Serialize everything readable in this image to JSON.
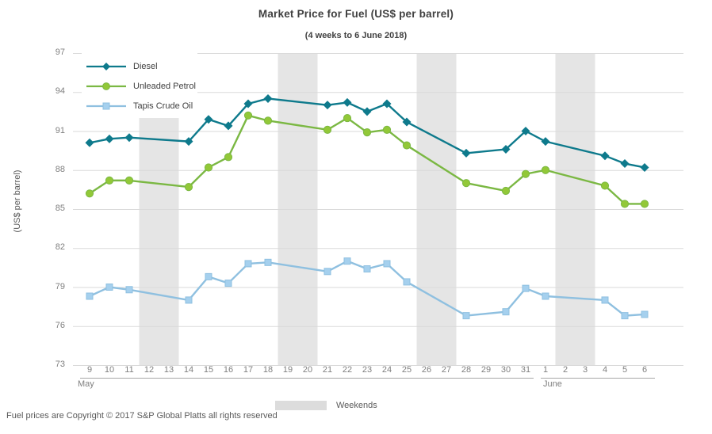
{
  "footer": "Fuel prices are Copyright © 2017 S&P Global Platts all rights reserved",
  "colors": {
    "title_text": "#404040",
    "tick_text": "#7F7F7F",
    "muted_text": "#595959",
    "gridline": "#DADADA",
    "weekend_band": "#E5E5E5",
    "weekend_swatch": "#DCDCDC",
    "diesel": "#0E7A8C",
    "unleaded_petrol": "#7BB843",
    "tapis_crude_oil": "#8FC0E0"
  },
  "chart_data": {
    "type": "line",
    "title": "Market Price for Fuel (US$ per barrel)",
    "subtitle": "(4 weeks to 6 June 2018)",
    "xlabel": "",
    "ylabel": "(US$ per barrel)",
    "ylim": [
      73,
      97
    ],
    "y_ticks": [
      97,
      94,
      91,
      88,
      85,
      82,
      79,
      76,
      73
    ],
    "grid": true,
    "legend_position": "top-left-inside",
    "weekend_legend_label": "Weekends",
    "x_categories": [
      "9",
      "10",
      "11",
      "12",
      "13",
      "14",
      "15",
      "16",
      "17",
      "18",
      "19",
      "20",
      "21",
      "22",
      "23",
      "24",
      "25",
      "26",
      "27",
      "28",
      "29",
      "30",
      "31",
      "1",
      "2",
      "3",
      "4",
      "5",
      "6"
    ],
    "month_groups": [
      {
        "label": "May",
        "start_index": 0,
        "end_index": 22
      },
      {
        "label": "June",
        "start_index": 23,
        "end_index": 28
      }
    ],
    "weekend_bands": [
      [
        3,
        4
      ],
      [
        10,
        11
      ],
      [
        17,
        18
      ],
      [
        24,
        25
      ]
    ],
    "series": [
      {
        "name": "Diesel",
        "marker": "diamond",
        "color": "#0E7A8C",
        "marker_color": "#0E7A8C",
        "values": [
          90.1,
          90.4,
          90.5,
          null,
          null,
          90.2,
          91.9,
          91.4,
          93.1,
          93.5,
          null,
          null,
          93.0,
          93.2,
          92.5,
          93.1,
          91.7,
          null,
          null,
          89.3,
          null,
          89.6,
          91.0,
          90.2,
          null,
          null,
          89.1,
          88.5,
          88.2
        ]
      },
      {
        "name": "Unleaded Petrol",
        "marker": "circle",
        "color": "#7BB843",
        "marker_color": "#92C838",
        "values": [
          86.2,
          87.2,
          87.2,
          null,
          null,
          86.7,
          88.2,
          89.0,
          92.2,
          91.8,
          null,
          null,
          91.1,
          92.0,
          90.9,
          91.1,
          89.9,
          null,
          null,
          87.0,
          null,
          86.4,
          87.7,
          88.0,
          null,
          null,
          86.8,
          85.4,
          85.4
        ]
      },
      {
        "name": "Tapis Crude Oil",
        "marker": "square",
        "color": "#8FC0E0",
        "marker_color": "#A5D0EE",
        "values": [
          78.3,
          79.0,
          78.8,
          null,
          null,
          78.0,
          79.8,
          79.3,
          80.8,
          80.9,
          null,
          null,
          80.2,
          81.0,
          80.4,
          80.8,
          79.4,
          null,
          null,
          76.8,
          null,
          77.1,
          78.9,
          78.3,
          null,
          null,
          78.0,
          76.8,
          76.9
        ]
      }
    ]
  }
}
